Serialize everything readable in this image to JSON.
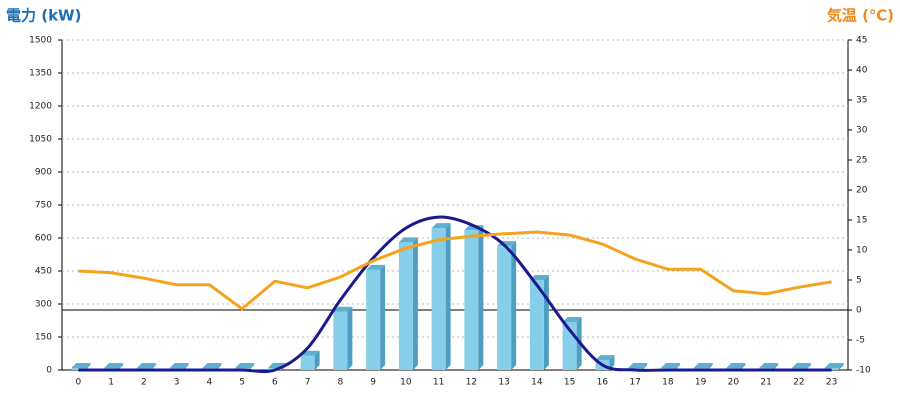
{
  "chart_data": {
    "type": "bar_line",
    "ylabel": "電力 (kW)",
    "y2label": "気温 (℃)",
    "categories": [
      "0",
      "1",
      "2",
      "3",
      "4",
      "5",
      "6",
      "7",
      "8",
      "9",
      "10",
      "11",
      "12",
      "13",
      "14",
      "15",
      "16",
      "17",
      "18",
      "19",
      "20",
      "21",
      "22",
      "23"
    ],
    "series": [
      {
        "type": "bar",
        "color": "#87ceeb",
        "values": [
          0,
          0,
          0,
          0,
          0,
          0,
          0,
          65,
          265,
          455,
          580,
          645,
          636,
          563,
          409,
          218,
          45,
          0,
          0,
          0,
          0,
          0,
          0,
          0
        ]
      },
      {
        "type": "smooth-line",
        "color": "#1a1a8c",
        "values": [
          0,
          0,
          0,
          0,
          0,
          0,
          0,
          100,
          318,
          509,
          645,
          695,
          660,
          568,
          386,
          182,
          23,
          0,
          0,
          0,
          0,
          0,
          0,
          0
        ]
      },
      {
        "type": "line",
        "axis": "y2",
        "color": "#f5a31e",
        "values": [
          6.5,
          6.2,
          5.3,
          4.2,
          4.2,
          0.2,
          4.8,
          3.7,
          5.5,
          8.2,
          10.3,
          11.7,
          12.3,
          12.7,
          13,
          12.5,
          11,
          8.5,
          6.8,
          6.8,
          3.2,
          2.7,
          3.8,
          4.7
        ]
      }
    ],
    "ylim": [
      0,
      1500
    ],
    "yticks": [
      0,
      150,
      300,
      450,
      600,
      750,
      900,
      1050,
      1200,
      1350,
      1500
    ],
    "y2lim": [
      -10,
      45
    ],
    "y2ticks": [
      -10,
      -5,
      0,
      5,
      10,
      15,
      20,
      25,
      30,
      35,
      40,
      45
    ],
    "y2_reference_line": 0,
    "grid": true
  }
}
